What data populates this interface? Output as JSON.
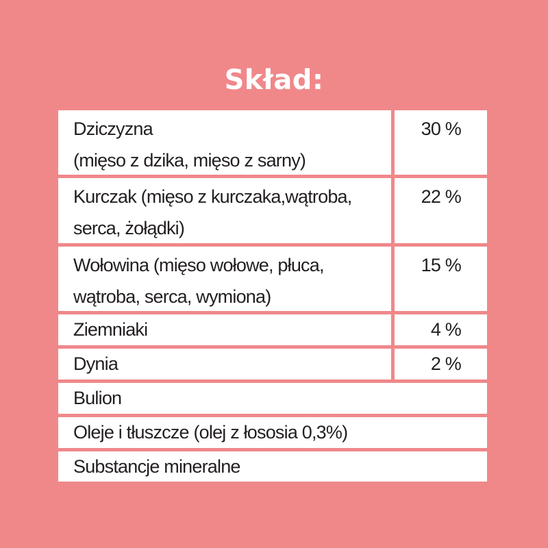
{
  "title": "Skład:",
  "ingredients": [
    {
      "name_line1": "Dziczyzna",
      "name_line2": "(mięso z dzika, mięso z sarny)",
      "percent": "30 %"
    },
    {
      "name_line1": "Kurczak (mięso z kurczaka,wątroba,",
      "name_line2": "serca, żołądki)",
      "percent": "22 %"
    },
    {
      "name_line1": "Wołowina (mięso wołowe, płuca,",
      "name_line2": "wątroba, serca, wymiona)",
      "percent": "15 %"
    },
    {
      "name_line1": "Ziemniaki",
      "percent": "4 %"
    },
    {
      "name_line1": "Dynia",
      "percent": "2 %"
    },
    {
      "name_line1": "Bulion"
    },
    {
      "name_line1": "Oleje i tłuszcze (olej z łososia 0,3%)"
    },
    {
      "name_line1": "Substancje mineralne"
    }
  ],
  "colors": {
    "background": "#f0888a",
    "cell": "#ffffff",
    "text": "#231f20"
  }
}
